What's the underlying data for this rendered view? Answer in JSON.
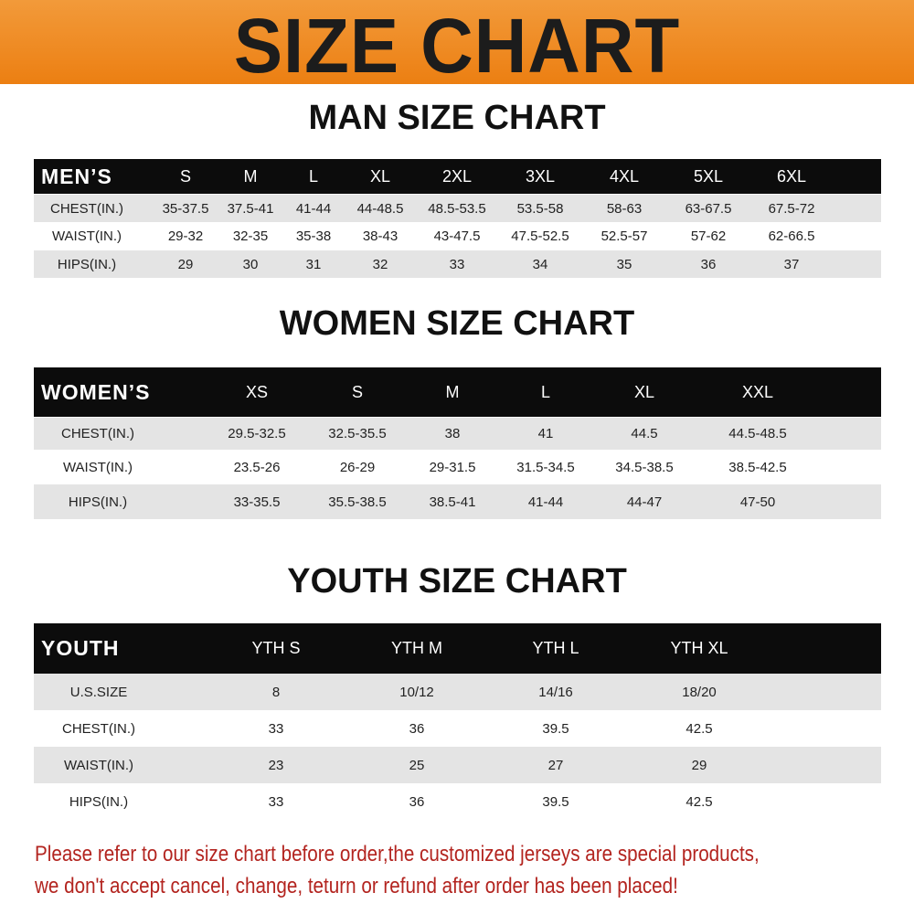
{
  "banner": {
    "title": "SIZE CHART",
    "color": "#ec8418"
  },
  "men": {
    "title": "MAN SIZE CHART",
    "header": [
      "MEN’S",
      "S",
      "M",
      "L",
      "XL",
      "2XL",
      "3XL",
      "4XL",
      "5XL",
      "6XL"
    ],
    "rows": [
      [
        "CHEST(IN.)",
        "35-37.5",
        "37.5-41",
        "41-44",
        "44-48.5",
        "48.5-53.5",
        "53.5-58",
        "58-63",
        "63-67.5",
        "67.5-72"
      ],
      [
        "WAIST(IN.)",
        "29-32",
        "32-35",
        "35-38",
        "38-43",
        "43-47.5",
        "47.5-52.5",
        "52.5-57",
        "57-62",
        "62-66.5"
      ],
      [
        "HIPS(IN.)",
        "29",
        "30",
        "31",
        "32",
        "33",
        "34",
        "35",
        "36",
        "37"
      ]
    ]
  },
  "women": {
    "title": "WOMEN SIZE CHART",
    "header": [
      "WOMEN’S",
      "XS",
      "S",
      "M",
      "L",
      "XL",
      "XXL"
    ],
    "rows": [
      [
        "CHEST(IN.)",
        "29.5-32.5",
        "32.5-35.5",
        "38",
        "41",
        "44.5",
        "44.5-48.5"
      ],
      [
        "WAIST(IN.)",
        "23.5-26",
        "26-29",
        "29-31.5",
        "31.5-34.5",
        "34.5-38.5",
        "38.5-42.5"
      ],
      [
        "HIPS(IN.)",
        "33-35.5",
        "35.5-38.5",
        "38.5-41",
        "41-44",
        "44-47",
        "47-50"
      ]
    ]
  },
  "youth": {
    "title": "YOUTH SIZE CHART",
    "header": [
      "YOUTH",
      "YTH S",
      "YTH M",
      "YTH L",
      "YTH XL"
    ],
    "rows": [
      [
        "U.S.SIZE",
        "8",
        "10/12",
        "14/16",
        "18/20"
      ],
      [
        "CHEST(IN.)",
        "33",
        "36",
        "39.5",
        "42.5"
      ],
      [
        "WAIST(IN.)",
        "23",
        "25",
        "27",
        "29"
      ],
      [
        "HIPS(IN.)",
        "33",
        "36",
        "39.5",
        "42.5"
      ]
    ]
  },
  "notice": {
    "line1": "Please refer to our size chart before order,the customized jerseys are special products,",
    "line2": "we don't accept cancel, change, teturn or refund after order has been placed!",
    "color": "#b3241f"
  }
}
